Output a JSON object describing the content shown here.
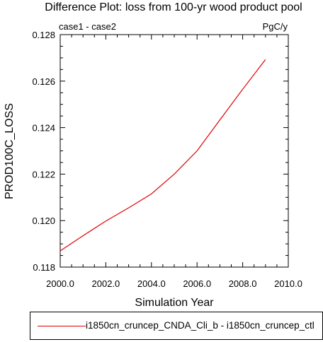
{
  "chart_data": {
    "type": "line",
    "title": "Difference Plot: loss from 100-yr wood product pool",
    "left_subtitle": "case1 - case2",
    "right_subtitle": "PgC/y",
    "xlabel": "Simulation Year",
    "ylabel": "PROD100C_LOSS",
    "xlim": [
      2000.0,
      2010.0
    ],
    "ylim": [
      0.118,
      0.128
    ],
    "x_ticks": [
      "2000.0",
      "2002.0",
      "2004.0",
      "2006.0",
      "2008.0",
      "2010.0"
    ],
    "y_ticks": [
      "0.118",
      "0.120",
      "0.122",
      "0.124",
      "0.126",
      "0.128"
    ],
    "series": [
      {
        "name": "i1850cn_cruncep_CNDA_Cli_b - i1850cn_cruncep_ctl",
        "color": "#e00000",
        "x": [
          2000,
          2001,
          2002,
          2003,
          2004,
          2005,
          2006,
          2007,
          2008,
          2009
        ],
        "y": [
          0.1187,
          0.11935,
          0.11998,
          0.12055,
          0.12115,
          0.122,
          0.123,
          0.12433,
          0.12565,
          0.12693
        ]
      }
    ],
    "legend_placement": "bottom",
    "grid": false
  }
}
